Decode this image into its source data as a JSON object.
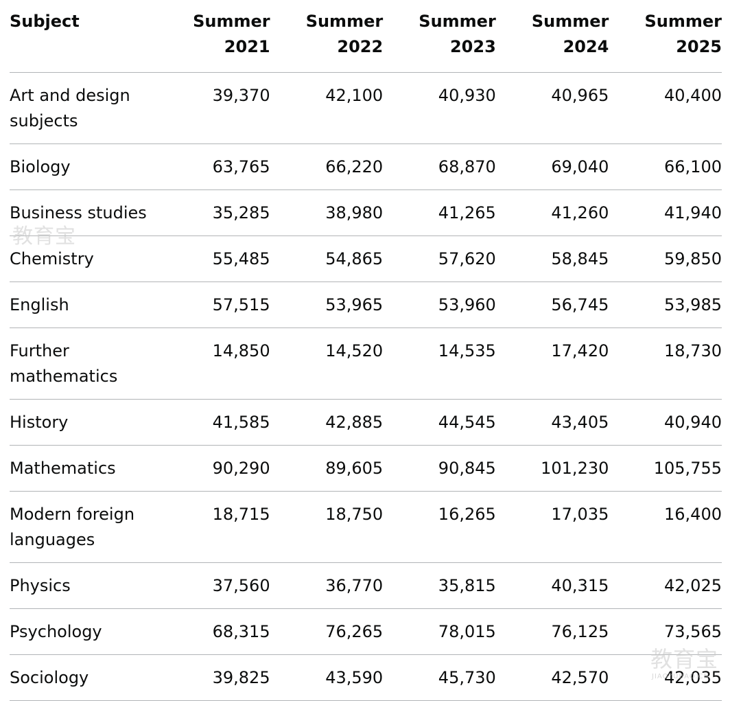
{
  "table": {
    "headers": {
      "subject": "Subject",
      "years": [
        {
          "line1": "Summer",
          "line2": "2021"
        },
        {
          "line1": "Summer",
          "line2": "2022"
        },
        {
          "line1": "Summer",
          "line2": "2023"
        },
        {
          "line1": "Summer",
          "line2": "2024"
        },
        {
          "line1": "Summer",
          "line2": "2025"
        }
      ]
    },
    "rows": [
      {
        "subject": "Art and design subjects",
        "values": [
          "39,370",
          "42,100",
          "40,930",
          "40,965",
          "40,400"
        ]
      },
      {
        "subject": "Biology",
        "values": [
          "63,765",
          "66,220",
          "68,870",
          "69,040",
          "66,100"
        ]
      },
      {
        "subject": "Business studies",
        "values": [
          "35,285",
          "38,980",
          "41,265",
          "41,260",
          "41,940"
        ]
      },
      {
        "subject": "Chemistry",
        "values": [
          "55,485",
          "54,865",
          "57,620",
          "58,845",
          "59,850"
        ]
      },
      {
        "subject": "English",
        "values": [
          "57,515",
          "53,965",
          "53,960",
          "56,745",
          "53,985"
        ]
      },
      {
        "subject": "Further mathematics",
        "values": [
          "14,850",
          "14,520",
          "14,535",
          "17,420",
          "18,730"
        ]
      },
      {
        "subject": "History",
        "values": [
          "41,585",
          "42,885",
          "44,545",
          "43,405",
          "40,940"
        ]
      },
      {
        "subject": "Mathematics",
        "values": [
          "90,290",
          "89,605",
          "90,845",
          "101,230",
          "105,755"
        ]
      },
      {
        "subject": "Modern foreign languages",
        "values": [
          "18,715",
          "18,750",
          "16,265",
          "17,035",
          "16,400"
        ]
      },
      {
        "subject": "Physics",
        "values": [
          "37,560",
          "36,770",
          "35,815",
          "40,315",
          "42,025"
        ]
      },
      {
        "subject": "Psychology",
        "values": [
          "68,315",
          "76,265",
          "78,015",
          "76,125",
          "73,565"
        ]
      },
      {
        "subject": "Sociology",
        "values": [
          "39,825",
          "43,590",
          "45,730",
          "42,570",
          "42,035"
        ]
      }
    ]
  },
  "watermarks": {
    "top_left": "教育宝",
    "bottom_right": "教育宝",
    "bottom_right_sub": "JIAOYUBAO.CN"
  }
}
